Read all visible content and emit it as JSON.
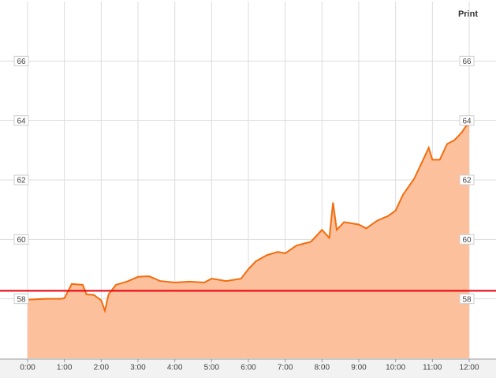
{
  "chart_data": {
    "type": "area",
    "button": "Print",
    "x": [
      0,
      0.5,
      0.9,
      1.0,
      1.2,
      1.5,
      1.6,
      1.8,
      2.0,
      2.1,
      2.2,
      2.4,
      2.7,
      3.0,
      3.3,
      3.6,
      4.0,
      4.4,
      4.8,
      5.0,
      5.4,
      5.8,
      6.0,
      6.2,
      6.5,
      6.8,
      7.0,
      7.3,
      7.7,
      8.0,
      8.2,
      8.3,
      8.4,
      8.6,
      9.0,
      9.2,
      9.5,
      9.8,
      10.0,
      10.2,
      10.5,
      10.7,
      10.9,
      11.0,
      11.2,
      11.4,
      11.6,
      11.8,
      11.9,
      12.0
    ],
    "series": [
      {
        "color": "#f26d0e",
        "fill": "#fdc09d",
        "values": [
          57.97,
          58.0,
          58.0,
          58.02,
          58.5,
          58.47,
          58.15,
          58.13,
          57.95,
          57.6,
          58.15,
          58.47,
          58.58,
          58.74,
          58.76,
          58.6,
          58.55,
          58.58,
          58.55,
          58.68,
          58.6,
          58.68,
          59.0,
          59.26,
          59.47,
          59.58,
          59.53,
          59.79,
          59.92,
          60.32,
          60.05,
          61.24,
          60.32,
          60.58,
          60.5,
          60.37,
          60.63,
          60.79,
          60.97,
          61.5,
          62.03,
          62.55,
          63.08,
          62.68,
          62.68,
          63.21,
          63.34,
          63.6,
          63.79,
          63.87
        ]
      }
    ],
    "reference_line": 58.27,
    "reference_color": "#e8000b",
    "xlim": [
      0,
      12
    ],
    "xticks": [
      {
        "value": 0,
        "label": "0:00"
      },
      {
        "value": 1,
        "label": "1:00"
      },
      {
        "value": 2,
        "label": "2:00"
      },
      {
        "value": 3,
        "label": "3:00"
      },
      {
        "value": 4,
        "label": "4:00"
      },
      {
        "value": 5,
        "label": "5:00"
      },
      {
        "value": 6,
        "label": "6:00"
      },
      {
        "value": 7,
        "label": "7:00"
      },
      {
        "value": 8,
        "label": "8:00"
      },
      {
        "value": 9,
        "label": "9:00"
      },
      {
        "value": 10,
        "label": "10:00"
      },
      {
        "value": 11,
        "label": "11:00"
      },
      {
        "value": 12,
        "label": "12:00"
      }
    ],
    "ylim": [
      56,
      68
    ],
    "yticks": [
      58,
      60,
      62,
      64,
      66
    ],
    "grid": true
  }
}
